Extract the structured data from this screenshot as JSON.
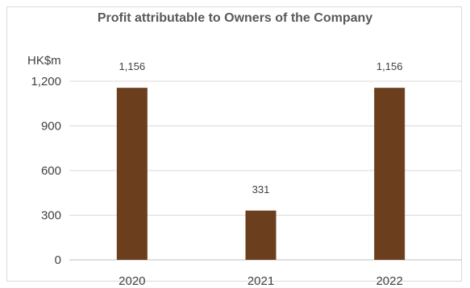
{
  "chart_data": {
    "type": "bar",
    "title": "Profit attributable to Owners of the Company",
    "unit": "HK$m",
    "xlabel": "",
    "ylabel": "",
    "categories": [
      "2020",
      "2021",
      "2022"
    ],
    "values": [
      1156,
      331,
      1156
    ],
    "data_labels": [
      "1,156",
      "331",
      "1,156"
    ],
    "ylim": [
      0,
      1200
    ],
    "yticks": [
      0,
      300,
      600,
      900,
      1200
    ],
    "ytick_labels": [
      "0",
      "300",
      "600",
      "900",
      "1,200"
    ],
    "grid": true,
    "legend": "none",
    "bar_color": "#6b3f1d",
    "grid_color": "#d9d9d9"
  }
}
